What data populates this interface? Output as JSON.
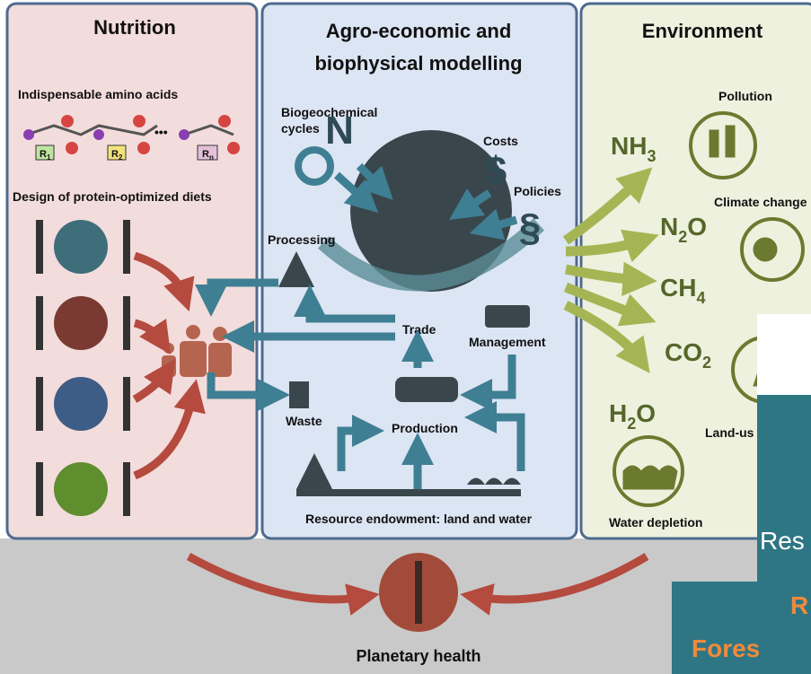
{
  "nutrition": {
    "title": "Nutrition",
    "amino_acids": "Indispensable amino acids",
    "residues": [
      {
        "base": "R",
        "sub": "1"
      },
      {
        "base": "R",
        "sub": "2"
      },
      {
        "base": "R",
        "sub": "n"
      }
    ],
    "ellipsis": "•••",
    "diets": "Design of protein-optimized diets"
  },
  "modelling": {
    "title": [
      "Agro-economic and",
      "biophysical modelling"
    ],
    "cycles": [
      "Biogeochemical",
      "cycles"
    ],
    "nitrogen": "N",
    "costs": "Costs",
    "dollar": "$",
    "policies": "Policies",
    "section": "§",
    "processing": "Processing",
    "trade": "Trade",
    "management": "Management",
    "waste": "Waste",
    "production": "Production",
    "resources": "Resource endowment: land and water"
  },
  "environment": {
    "title": "Environment",
    "pollution": "Pollution",
    "climate": "Climate change",
    "land_use": "Land-us",
    "water": "Water depletion",
    "gases": [
      {
        "base": "NH",
        "sub": "3"
      },
      {
        "base": "N",
        "sub": "2",
        "tail": "O"
      },
      {
        "base": "CH",
        "sub": "4"
      },
      {
        "base": "CO",
        "sub": "2"
      },
      {
        "base": "H",
        "sub": "2",
        "tail": "O"
      }
    ]
  },
  "footer": {
    "title": "Planetary health"
  },
  "overlay": {
    "line1": "Res",
    "line2": "R",
    "line3": "Fores"
  }
}
